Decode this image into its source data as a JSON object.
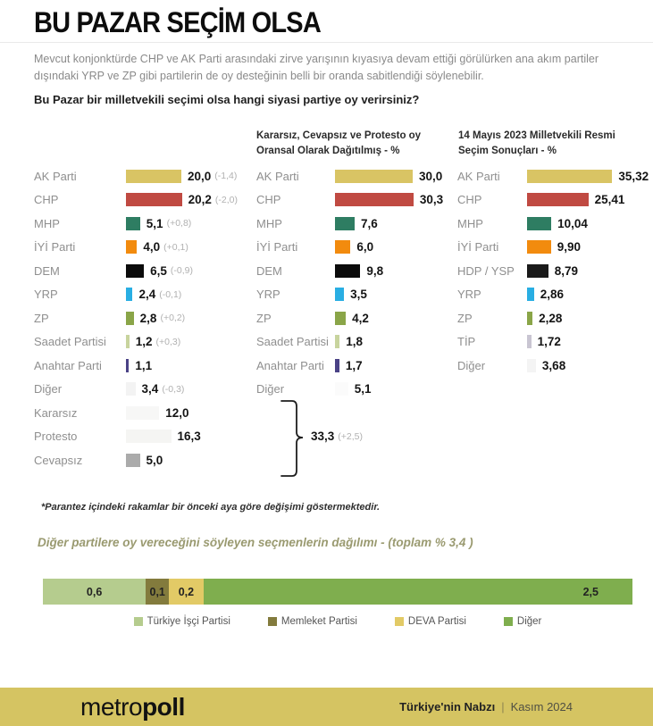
{
  "header": {
    "title": "BU PAZAR SEÇİM OLSA",
    "intro": "Mevcut konjonktürde CHP ve AK Parti arasındaki zirve yarışının kıyasıya devam ettiği görülürken ana akım partiler dışındaki YRP ve ZP gibi partilerin de oy desteğinin belli bir oranda sabitlendiği söylenebilir."
  },
  "footnote": "*Parantez içindeki rakamlar bir önceki aya göre değişimi göstermektedir.",
  "footer": {
    "logo_light": "metro",
    "logo_bold": "poll",
    "right_bold": "Türkiye'nin Nabzı",
    "right_sep": "|",
    "right_light": "Kasım 2024",
    "band_color": "#d5c462"
  },
  "chart_data": [
    {
      "type": "bar",
      "title": "Bu Pazar bir milletvekili seçimi olsa hangi siyasi partiye oy verirsiniz?",
      "unit": "%",
      "rows": [
        {
          "label": "AK Parti",
          "value": 20.0,
          "display": "20,0",
          "change": "(-1,4)",
          "color": "#d9c464"
        },
        {
          "label": "CHP",
          "value": 20.2,
          "display": "20,2",
          "change": "(-2,0)",
          "color": "#c04a42"
        },
        {
          "label": "MHP",
          "value": 5.1,
          "display": "5,1",
          "change": "(+0,8)",
          "color": "#2e7d62"
        },
        {
          "label": "İYİ Parti",
          "value": 4.0,
          "display": "4,0",
          "change": "(+0,1)",
          "color": "#f28b0e"
        },
        {
          "label": "DEM",
          "value": 6.5,
          "display": "6,5",
          "change": "(-0,9)",
          "color": "#0b0b0b"
        },
        {
          "label": "YRP",
          "value": 2.4,
          "display": "2,4",
          "change": "(-0,1)",
          "color": "#29aee3"
        },
        {
          "label": "ZP",
          "value": 2.8,
          "display": "2,8",
          "change": "(+0,2)",
          "color": "#8aa548"
        },
        {
          "label": "Saadet Partisi",
          "value": 1.2,
          "display": "1,2",
          "change": "(+0,3)",
          "color": "#c8d49e"
        },
        {
          "label": "Anahtar Parti",
          "value": 1.1,
          "display": "1,1",
          "change": null,
          "color": "#4a4286"
        },
        {
          "label": "Diğer",
          "value": 3.4,
          "display": "3,4",
          "change": "(-0,3)",
          "color": "#f3f3f3"
        },
        {
          "label": "Kararsız",
          "value": 12.0,
          "display": "12,0",
          "change": null,
          "color": "#f7f7f6"
        },
        {
          "label": "Protesto",
          "value": 16.3,
          "display": "16,3",
          "change": null,
          "color": "#f5f5f3"
        },
        {
          "label": "Cevapsız",
          "value": 5.0,
          "display": "5,0",
          "change": null,
          "color": "#ababab"
        }
      ],
      "bracket": {
        "value": 33.3,
        "display": "33,3",
        "change": "(+2,5)",
        "rows_spanned": [
          "Kararsız",
          "Protesto",
          "Cevapsız"
        ]
      }
    },
    {
      "type": "bar",
      "title": "Kararsız, Cevapsız ve Protesto oy Oransal Olarak Dağıtılmış - %",
      "unit": "%",
      "rows": [
        {
          "label": "AK Parti",
          "value": 30.0,
          "display": "30,0",
          "change": null,
          "color": "#d9c464"
        },
        {
          "label": "CHP",
          "value": 30.3,
          "display": "30,3",
          "change": null,
          "color": "#c04a42"
        },
        {
          "label": "MHP",
          "value": 7.6,
          "display": "7,6",
          "change": null,
          "color": "#2e7d62"
        },
        {
          "label": "İYİ Parti",
          "value": 6.0,
          "display": "6,0",
          "change": null,
          "color": "#f28b0e"
        },
        {
          "label": "DEM",
          "value": 9.8,
          "display": "9,8",
          "change": null,
          "color": "#0b0b0b"
        },
        {
          "label": "YRP",
          "value": 3.5,
          "display": "3,5",
          "change": null,
          "color": "#29aee3"
        },
        {
          "label": "ZP",
          "value": 4.2,
          "display": "4,2",
          "change": null,
          "color": "#8aa548"
        },
        {
          "label": "Saadet Partisi",
          "value": 1.8,
          "display": "1,8",
          "change": null,
          "color": "#c8d49e"
        },
        {
          "label": "Anahtar Parti",
          "value": 1.7,
          "display": "1,7",
          "change": null,
          "color": "#4a4286"
        },
        {
          "label": "Diğer",
          "value": 5.1,
          "display": "5,1",
          "change": null,
          "color": "#fbfbfb"
        }
      ]
    },
    {
      "type": "bar",
      "title": "14 Mayıs 2023 Milletvekili Resmi Seçim Sonuçları - %",
      "unit": "%",
      "rows": [
        {
          "label": "AK Parti",
          "value": 35.32,
          "display": "35,32",
          "change": null,
          "color": "#d9c464"
        },
        {
          "label": "CHP",
          "value": 25.41,
          "display": "25,41",
          "change": null,
          "color": "#c04a42"
        },
        {
          "label": "MHP",
          "value": 10.04,
          "display": "10,04",
          "change": null,
          "color": "#2e7d62"
        },
        {
          "label": "İYİ Parti",
          "value": 9.9,
          "display": "9,90",
          "change": null,
          "color": "#f28b0e"
        },
        {
          "label": "HDP / YSP",
          "value": 8.79,
          "display": "8,79",
          "change": null,
          "color": "#1a1a1a"
        },
        {
          "label": "YRP",
          "value": 2.86,
          "display": "2,86",
          "change": null,
          "color": "#29aee3"
        },
        {
          "label": "ZP",
          "value": 2.28,
          "display": "2,28",
          "change": null,
          "color": "#8aa548"
        },
        {
          "label": "TİP",
          "value": 1.72,
          "display": "1,72",
          "change": null,
          "color": "#c9c5d2"
        },
        {
          "label": "Diğer",
          "value": 3.68,
          "display": "3,68",
          "change": null,
          "color": "#f4f4f4"
        }
      ]
    },
    {
      "type": "stacked_bar",
      "title": "Diğer partilere oy vereceğini söyleyen seçmenlerin dağılımı -  (toplam % 3,4 )",
      "total": 3.4,
      "segments": [
        {
          "label": "Türkiye İşçi Partisi",
          "value": 0.6,
          "display": "0,6",
          "color": "#b5cc8e"
        },
        {
          "label": "Memleket Partisi",
          "value": 0.1,
          "display": "0,1",
          "color": "#837b3d"
        },
        {
          "label": "DEVA Partisi",
          "value": 0.2,
          "display": "0,2",
          "color": "#e2ca66"
        },
        {
          "label": "Diğer",
          "value": 2.5,
          "display": "2,5",
          "color": "#7fae4e"
        }
      ]
    }
  ]
}
